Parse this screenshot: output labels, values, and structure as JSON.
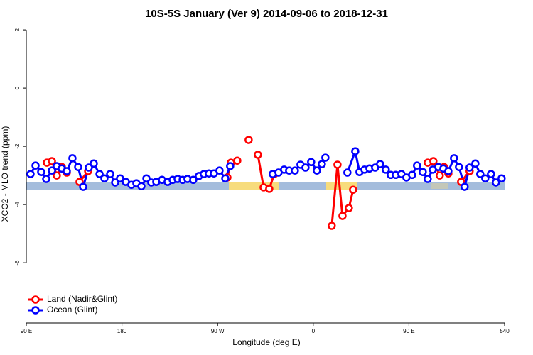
{
  "chart_data": {
    "type": "line",
    "title": "10S-5S January (Ver 9)   2014-09-06 to 2018-12-31",
    "x_label": "Longitude (deg E)",
    "y_label": "XCO2 - MLO trend (ppm)",
    "xlim": [
      90,
      540
    ],
    "xticks": [
      {
        "value": 90,
        "label": "90 E"
      },
      180,
      {
        "value": 270,
        "label": "90 W"
      },
      {
        "value": 360,
        "label": "0"
      },
      {
        "value": 450,
        "label": "90 E"
      },
      540
    ],
    "ylim": [
      -8.07,
      2.1
    ],
    "yticks": [
      2,
      0,
      -2,
      -4,
      -6
    ],
    "legend": "bottom-left",
    "series": [
      {
        "name": "Land (Nadir&Glint)",
        "color": "#ff0000",
        "x": [
          109.4,
          114.1,
          118.7,
          123.4,
          128.1,
          null,
          140.1,
          148.2,
          null,
          279.2,
          282.5,
          288.5,
          null,
          299.2,
          null,
          307.9,
          313.3,
          318.6,
          323.3,
          null,
          377.4,
          382.8,
          387.5,
          393.5,
          397.5,
          null,
          467.7,
          473.0,
          479.0,
          483.0,
          487.1,
          null,
          499.1,
          507.1
        ],
        "values": [
          -2.56,
          -2.51,
          -3.0,
          -2.71,
          -2.9,
          null,
          -3.22,
          -2.85,
          null,
          -3.07,
          -2.56,
          -2.49,
          null,
          -1.78,
          null,
          -2.29,
          -3.41,
          -3.46,
          -2.95,
          null,
          -4.73,
          -2.63,
          -4.39,
          -4.12,
          -3.49,
          null,
          -2.56,
          -2.51,
          -3.0,
          -2.71,
          -2.93,
          null,
          -3.22,
          -2.85
        ]
      },
      {
        "name": "Ocean (Glint)",
        "color": "#0000ff",
        "x": [
          94.0,
          98.7,
          104.0,
          108.7,
          114.1,
          118.7,
          123.4,
          128.1,
          133.4,
          138.8,
          143.5,
          148.8,
          153.5,
          158.9,
          163.5,
          168.9,
          173.6,
          178.2,
          183.6,
          188.9,
          193.6,
          198.3,
          203.0,
          207.6,
          212.3,
          217.7,
          223.0,
          227.7,
          232.4,
          237.1,
          241.7,
          247.1,
          252.4,
          257.1,
          261.8,
          266.5,
          271.8,
          277.2,
          281.8,
          null,
          321.9,
          327.3,
          332.6,
          337.3,
          342.7,
          348.0,
          352.7,
          358.0,
          363.4,
          368.1,
          371.4,
          null,
          392.1,
          399.5,
          403.5,
          408.2,
          412.9,
          418.2,
          422.9,
          428.2,
          432.9,
          437.6,
          442.9,
          447.6,
          453.0,
          457.6,
          463.0,
          467.7,
          472.4,
          477.7,
          482.4,
          487.1,
          492.4,
          497.1,
          502.4,
          507.1,
          512.5,
          517.1,
          521.8,
          527.2,
          531.8,
          537.2
        ],
        "values": [
          -2.95,
          -2.66,
          -2.88,
          -3.12,
          -2.83,
          -2.68,
          -2.76,
          -2.85,
          -2.41,
          -2.71,
          -3.39,
          -2.73,
          -2.59,
          -2.95,
          -3.1,
          -2.95,
          -3.24,
          -3.1,
          -3.22,
          -3.32,
          -3.27,
          -3.37,
          -3.1,
          -3.24,
          -3.22,
          -3.15,
          -3.22,
          -3.15,
          -3.12,
          -3.15,
          -3.12,
          -3.15,
          -3.02,
          -2.95,
          -2.93,
          -2.93,
          -2.83,
          -3.1,
          -2.68,
          null,
          -2.95,
          -2.9,
          -2.8,
          -2.83,
          -2.83,
          -2.63,
          -2.73,
          -2.54,
          -2.83,
          -2.61,
          -2.39,
          null,
          -2.9,
          -2.17,
          -2.88,
          -2.8,
          -2.76,
          -2.73,
          -2.61,
          -2.8,
          -2.98,
          -2.98,
          -2.95,
          -3.07,
          -2.98,
          -2.66,
          -2.88,
          -3.12,
          -2.8,
          -2.71,
          -2.76,
          -2.85,
          -2.41,
          -2.71,
          -3.39,
          -2.73,
          -2.59,
          -2.95,
          -3.1,
          -2.95,
          -3.24,
          -3.1
        ]
      }
    ]
  }
}
